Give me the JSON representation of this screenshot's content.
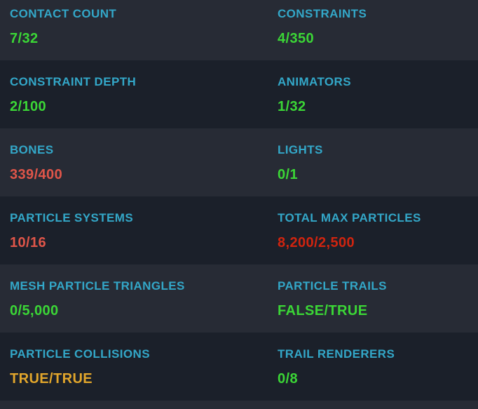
{
  "panel": {
    "colors": {
      "row_bg_light": "#272b35",
      "row_bg_dark": "#1b202a",
      "label": "#33a7c8",
      "value_good": "#3bd636",
      "value_medium": "#df5549",
      "value_very_poor": "#d0240f",
      "value_warning": "#e2a62b"
    },
    "rows": [
      {
        "cells": [
          {
            "label": "CONTACT COUNT",
            "value": "7/32",
            "color": "#3bd636"
          },
          {
            "label": "CONSTRAINTS",
            "value": "4/350",
            "color": "#3bd636"
          }
        ]
      },
      {
        "cells": [
          {
            "label": "CONSTRAINT DEPTH",
            "value": "2/100",
            "color": "#3bd636"
          },
          {
            "label": "ANIMATORS",
            "value": "1/32",
            "color": "#3bd636"
          }
        ]
      },
      {
        "cells": [
          {
            "label": "BONES",
            "value": "339/400",
            "color": "#df5549"
          },
          {
            "label": "LIGHTS",
            "value": "0/1",
            "color": "#3bd636"
          }
        ]
      },
      {
        "cells": [
          {
            "label": "PARTICLE SYSTEMS",
            "value": "10/16",
            "color": "#df5549"
          },
          {
            "label": "TOTAL MAX PARTICLES",
            "value": "8,200/2,500",
            "color": "#d0240f"
          }
        ]
      },
      {
        "cells": [
          {
            "label": "MESH PARTICLE TRIANGLES",
            "value": "0/5,000",
            "color": "#3bd636"
          },
          {
            "label": "PARTICLE TRAILS",
            "value": "FALSE/TRUE",
            "color": "#3bd636"
          }
        ]
      },
      {
        "cells": [
          {
            "label": "PARTICLE COLLISIONS",
            "value": "TRUE/TRUE",
            "color": "#e2a62b"
          },
          {
            "label": "TRAIL RENDERERS",
            "value": "0/8",
            "color": "#3bd636"
          }
        ]
      }
    ]
  }
}
